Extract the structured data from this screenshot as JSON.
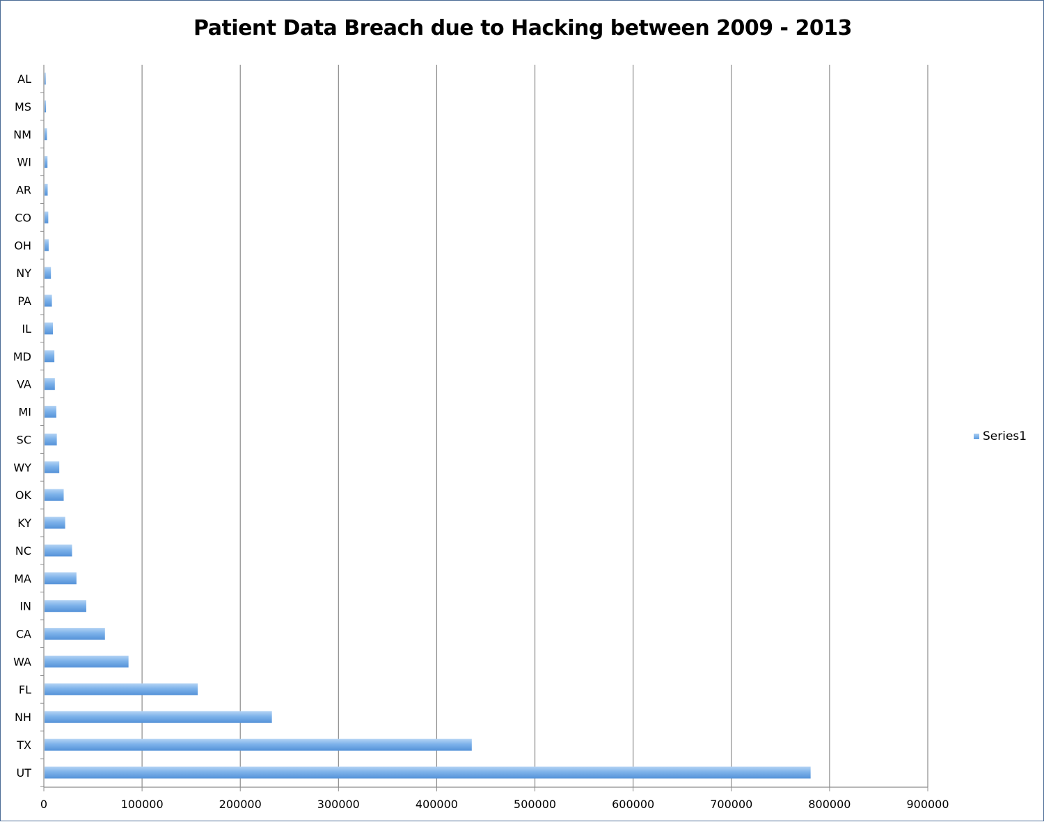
{
  "chart_data": {
    "type": "bar",
    "orientation": "horizontal",
    "title": "Patient Data Breach due to Hacking between 2009 - 2013",
    "xlabel": "",
    "ylabel": "",
    "xlim": [
      0,
      900000
    ],
    "xticks": [
      "0",
      "100000",
      "200000",
      "300000",
      "400000",
      "500000",
      "600000",
      "700000",
      "800000",
      "900000"
    ],
    "grid": true,
    "legend_position": "right",
    "bar_color": "#6fa8e6",
    "categories": [
      "AL",
      "MS",
      "NM",
      "WI",
      "AR",
      "CO",
      "OH",
      "NY",
      "PA",
      "IL",
      "MD",
      "VA",
      "MI",
      "SC",
      "WY",
      "OK",
      "KY",
      "NC",
      "MA",
      "IN",
      "CA",
      "WA",
      "FL",
      "NH",
      "TX",
      "UT"
    ],
    "series": [
      {
        "name": "Series1",
        "values": [
          1200,
          1500,
          2500,
          3000,
          3200,
          3800,
          4200,
          6500,
          7500,
          8500,
          10000,
          10500,
          12000,
          12500,
          15000,
          19500,
          21000,
          28000,
          32500,
          42500,
          61500,
          85500,
          156000,
          231500,
          435000,
          780000
        ]
      }
    ]
  }
}
